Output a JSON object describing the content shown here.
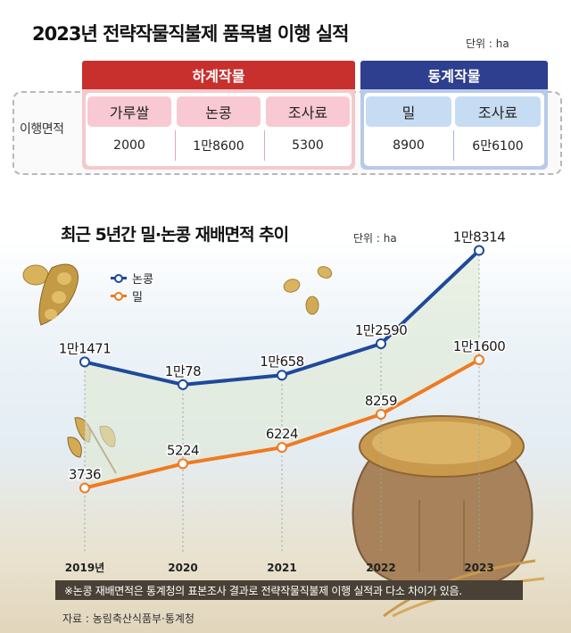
{
  "title": "2023년 전략작물직불제 품목별 이행 실적",
  "table_unit": "단위 : ha",
  "table": {
    "row_label": "이행면적",
    "summer": {
      "label": "하계작물",
      "color": "#c8302e",
      "columns": [
        {
          "name": "가루쌀",
          "value": "2000"
        },
        {
          "name": "논콩",
          "value": "1만8600"
        },
        {
          "name": "조사료",
          "value": "5300"
        }
      ]
    },
    "winter": {
      "label": "동계작물",
      "color": "#2e3f8f",
      "columns": [
        {
          "name": "밀",
          "value": "8900"
        },
        {
          "name": "조사료",
          "value": "6만6100"
        }
      ]
    }
  },
  "chart_title": "최근 5년간 밀·논콩 재배면적 추이",
  "chart_unit": "단위 : ha",
  "chart_data": {
    "type": "line",
    "title": "최근 5년간 밀·논콩 재배면적 추이",
    "unit": "ha",
    "categories": [
      "2019년",
      "2020",
      "2021",
      "2022",
      "2023"
    ],
    "series": [
      {
        "name": "논콩",
        "color": "#1f4a9a",
        "values": [
          11471,
          10078,
          10658,
          12590,
          18314
        ],
        "labels": [
          "1만1471",
          "1만78",
          "1만658",
          "1만2590",
          "1만8314"
        ]
      },
      {
        "name": "밀",
        "color": "#ee7b22",
        "values": [
          3736,
          5224,
          6224,
          8259,
          11600
        ],
        "labels": [
          "3736",
          "5224",
          "6224",
          "8259",
          "1만1600"
        ]
      }
    ],
    "legend_position": "top-left"
  },
  "note": "※논콩 재배면적은 통계청의 표본조사 결과로 전략작물직불제 이행 실적과 다소 차이가 있음.",
  "source": "자료 : 농림축산식품부·통계청"
}
